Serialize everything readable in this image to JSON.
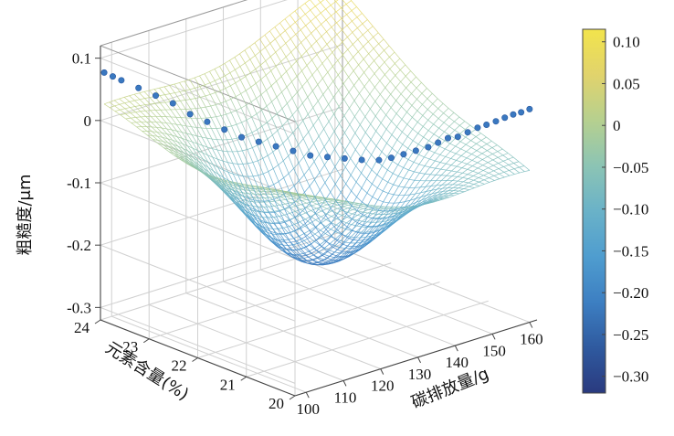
{
  "chart_data": {
    "type": "surface-3d",
    "xlabel": "碳排放量/g",
    "ylabel": "元素含量(%)",
    "zlabel": "粗糙度/μm",
    "x_ticks": [
      "100",
      "110",
      "120",
      "130",
      "140",
      "150",
      "160"
    ],
    "y_ticks": [
      "20",
      "21",
      "22",
      "23",
      "24"
    ],
    "z_ticks": [
      "0.1",
      "0",
      "-0.1",
      "-0.2",
      "-0.3"
    ],
    "xlim": [
      97,
      162
    ],
    "ylim": [
      20,
      24
    ],
    "zlim": [
      -0.32,
      0.12
    ],
    "colorbar": {
      "ticks": [
        "0.10",
        "0.05",
        "0",
        "−0.05",
        "−0.10",
        "−0.15",
        "−0.20",
        "−0.25",
        "−0.30"
      ],
      "range": [
        -0.32,
        0.115
      ],
      "colors": [
        "#2a3a7f",
        "#2f5a9f",
        "#3d7fc2",
        "#4f9dcf",
        "#6ab2c8",
        "#8cc4b4",
        "#b6d08f",
        "#e1d36c",
        "#f2e44c"
      ]
    },
    "scatter_points": [
      {
        "x": 98,
        "y": 24,
        "z": 0.075
      },
      {
        "x": 99,
        "y": 23.9,
        "z": 0.07
      },
      {
        "x": 100,
        "y": 23.8,
        "z": 0.065
      },
      {
        "x": 102,
        "y": 23.6,
        "z": 0.055
      },
      {
        "x": 104,
        "y": 23.4,
        "z": 0.045
      },
      {
        "x": 106,
        "y": 23.2,
        "z": 0.035
      },
      {
        "x": 108,
        "y": 23,
        "z": 0.02
      },
      {
        "x": 110,
        "y": 22.8,
        "z": 0.01
      },
      {
        "x": 112,
        "y": 22.6,
        "z": 0.0
      },
      {
        "x": 114,
        "y": 22.4,
        "z": -0.01
      },
      {
        "x": 116,
        "y": 22.2,
        "z": -0.015
      },
      {
        "x": 118,
        "y": 22,
        "z": -0.02
      },
      {
        "x": 120,
        "y": 21.8,
        "z": -0.025
      },
      {
        "x": 122,
        "y": 21.6,
        "z": -0.03
      },
      {
        "x": 124,
        "y": 21.4,
        "z": -0.03
      },
      {
        "x": 126,
        "y": 21.2,
        "z": -0.03
      },
      {
        "x": 128,
        "y": 21,
        "z": -0.03
      },
      {
        "x": 130,
        "y": 20.8,
        "z": -0.028
      },
      {
        "x": 132,
        "y": 20.7,
        "z": -0.025
      },
      {
        "x": 134,
        "y": 20.6,
        "z": -0.02
      },
      {
        "x": 136,
        "y": 20.5,
        "z": -0.015
      },
      {
        "x": 138,
        "y": 20.4,
        "z": -0.01
      },
      {
        "x": 140,
        "y": 20.35,
        "z": -0.005
      },
      {
        "x": 142,
        "y": 20.3,
        "z": 0.0
      },
      {
        "x": 144,
        "y": 20.25,
        "z": 0.0
      },
      {
        "x": 146,
        "y": 20.2,
        "z": 0.005
      },
      {
        "x": 148,
        "y": 20.15,
        "z": 0.01
      },
      {
        "x": 150,
        "y": 20.12,
        "z": 0.012
      },
      {
        "x": 152,
        "y": 20.08,
        "z": 0.015
      },
      {
        "x": 154,
        "y": 20.05,
        "z": 0.018
      },
      {
        "x": 156,
        "y": 20.03,
        "z": 0.02
      },
      {
        "x": 158,
        "y": 20.02,
        "z": 0.02
      },
      {
        "x": 160,
        "y": 20,
        "z": 0.022
      }
    ]
  }
}
